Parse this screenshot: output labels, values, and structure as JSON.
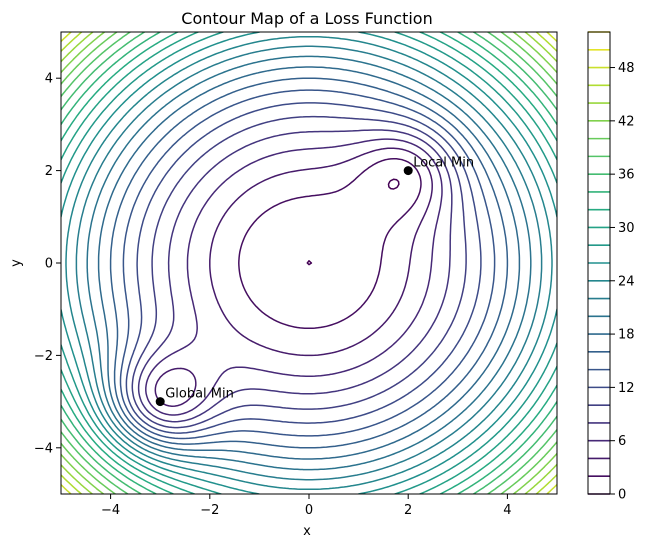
{
  "chart_data": {
    "type": "contour",
    "title": "Contour Map of a Loss Function",
    "xlabel": "x",
    "ylabel": "y",
    "xlim": [
      -5,
      5
    ],
    "ylim": [
      -5,
      5
    ],
    "x_ticks": [
      -4,
      -2,
      0,
      2,
      4
    ],
    "y_ticks": [
      -4,
      -2,
      0,
      2,
      4
    ],
    "x_tick_labels": [
      "−4",
      "−2",
      "0",
      "2",
      "4"
    ],
    "y_tick_labels": [
      "−4",
      "−2",
      "0",
      "2",
      "4"
    ],
    "grid": false,
    "colormap": "viridis",
    "colorbar": {
      "min": 0,
      "max": 52,
      "step": 2,
      "ticks": [
        0,
        6,
        12,
        18,
        24,
        30,
        36,
        42,
        48
      ],
      "tick_labels": [
        "0",
        "6",
        "12",
        "18",
        "24",
        "30",
        "36",
        "42",
        "48"
      ]
    },
    "points": [
      {
        "label": "Local Min",
        "x": 2,
        "y": 2
      },
      {
        "label": "Global Min",
        "x": -3,
        "y": -3
      }
    ]
  }
}
